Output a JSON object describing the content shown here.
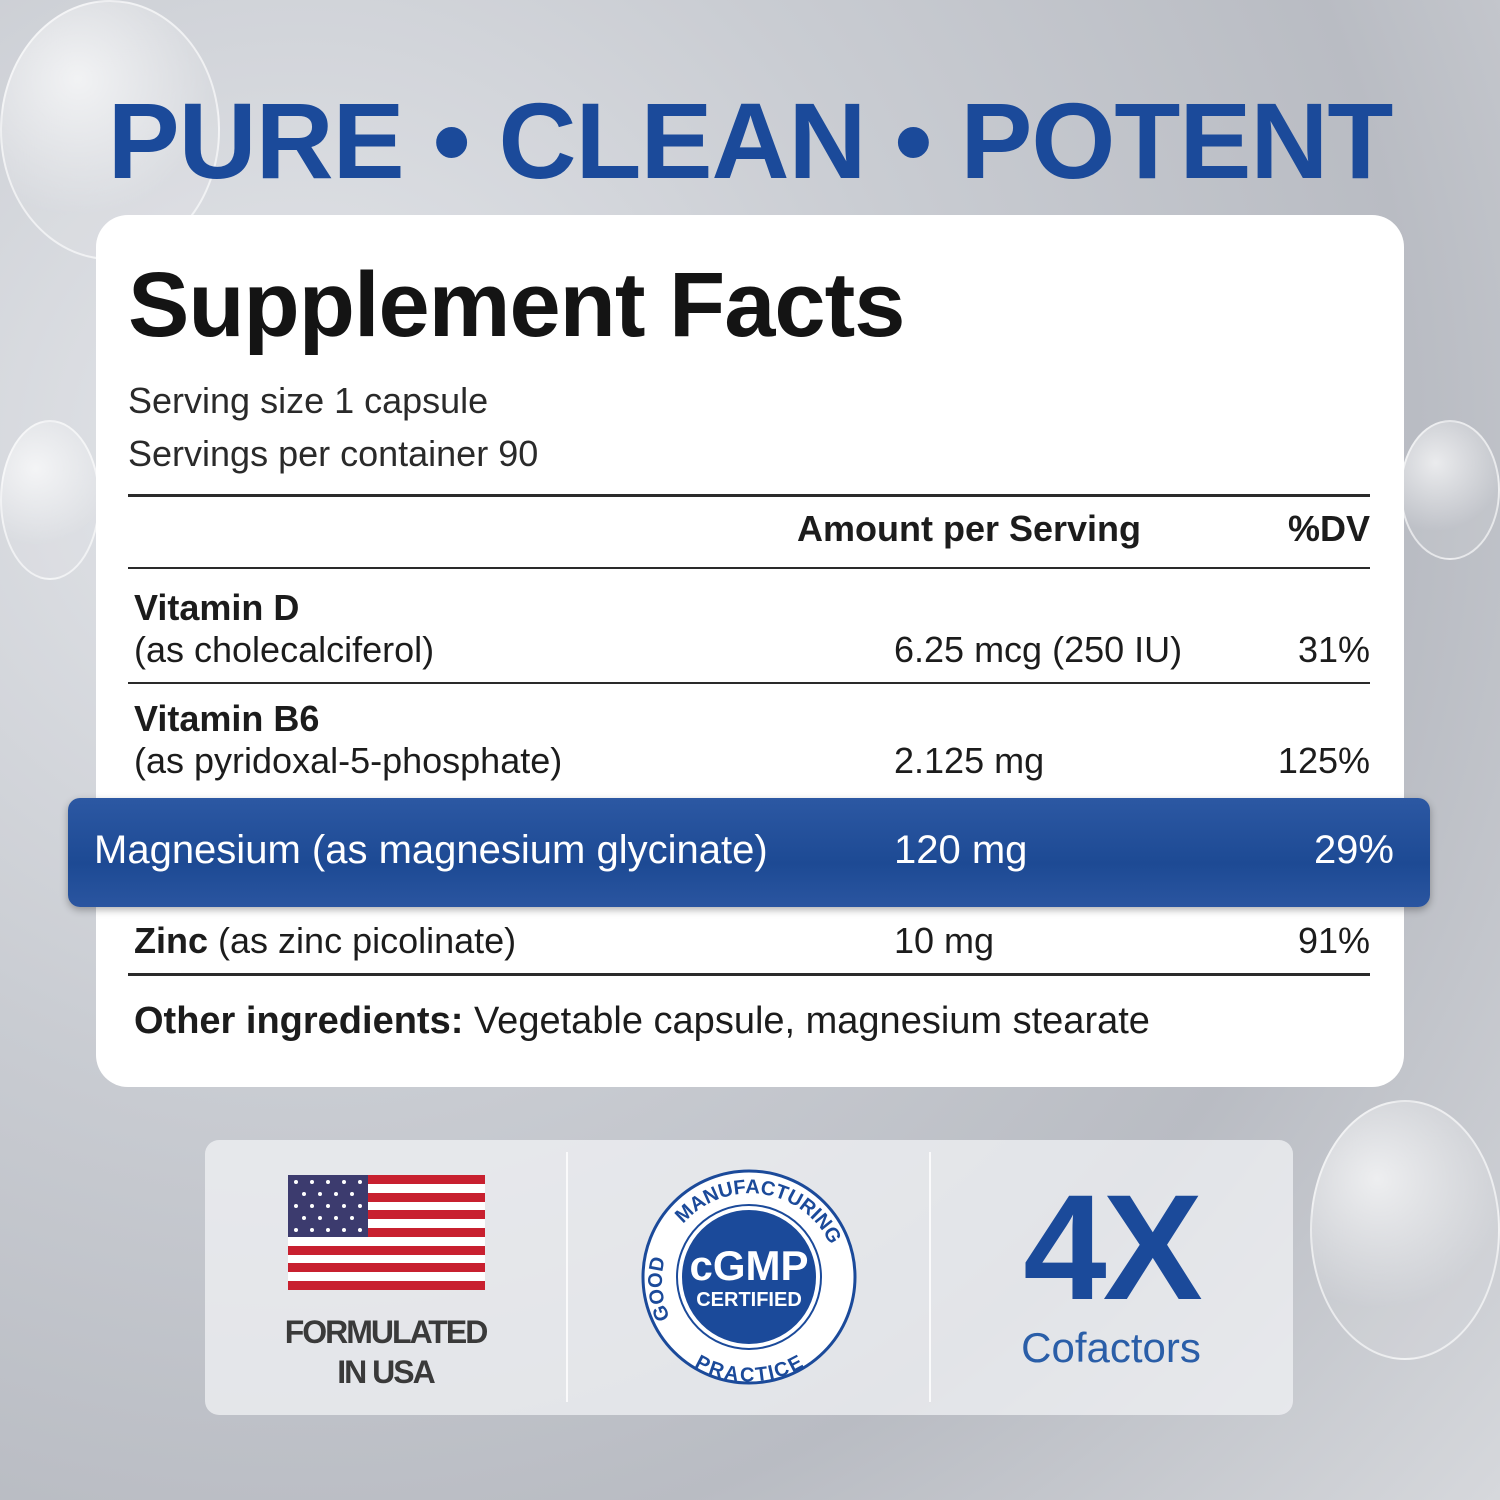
{
  "headline": "PURE • CLEAN • POTENT",
  "facts": {
    "title": "Supplement Facts",
    "serving_size": "Serving size 1 capsule",
    "servings_per_container": "Servings per container 90",
    "header_amount": "Amount per Serving",
    "header_dv": "%DV",
    "rows": [
      {
        "name": "Vitamin D",
        "form": "(as cholecalciferol)",
        "amount": "6.25 mcg (250 IU)",
        "dv": "31%"
      },
      {
        "name": "Vitamin B6",
        "form": "(as pyridoxal-5-phosphate)",
        "amount": "2.125 mg",
        "dv": "125%"
      },
      {
        "name": "Magnesium",
        "form": "(as magnesium glycinate)",
        "amount": "120 mg",
        "dv": "29%",
        "highlighted": true
      },
      {
        "name": "Zinc",
        "form": "(as zinc picolinate)",
        "amount": "10 mg",
        "dv": "91%"
      }
    ],
    "other_label": "Other ingredients:",
    "other_value": "Vegetable capsule, magnesium stearate"
  },
  "badges": {
    "usa_line1": "FORMULATED",
    "usa_line2": "IN USA",
    "seal_outer_top": "MANUFACTURING",
    "seal_outer_left": "GOOD",
    "seal_outer_bottom": "PRACTICE",
    "seal_main": "cGMP",
    "seal_sub": "CERTIFIED",
    "cofactor_number": "4X",
    "cofactor_label": "Cofactors"
  },
  "colors": {
    "brand_blue": "#1b4a9a",
    "highlight_bar": "#234f9c",
    "flag_red": "#c8202f",
    "flag_blue": "#3c3b6e"
  }
}
